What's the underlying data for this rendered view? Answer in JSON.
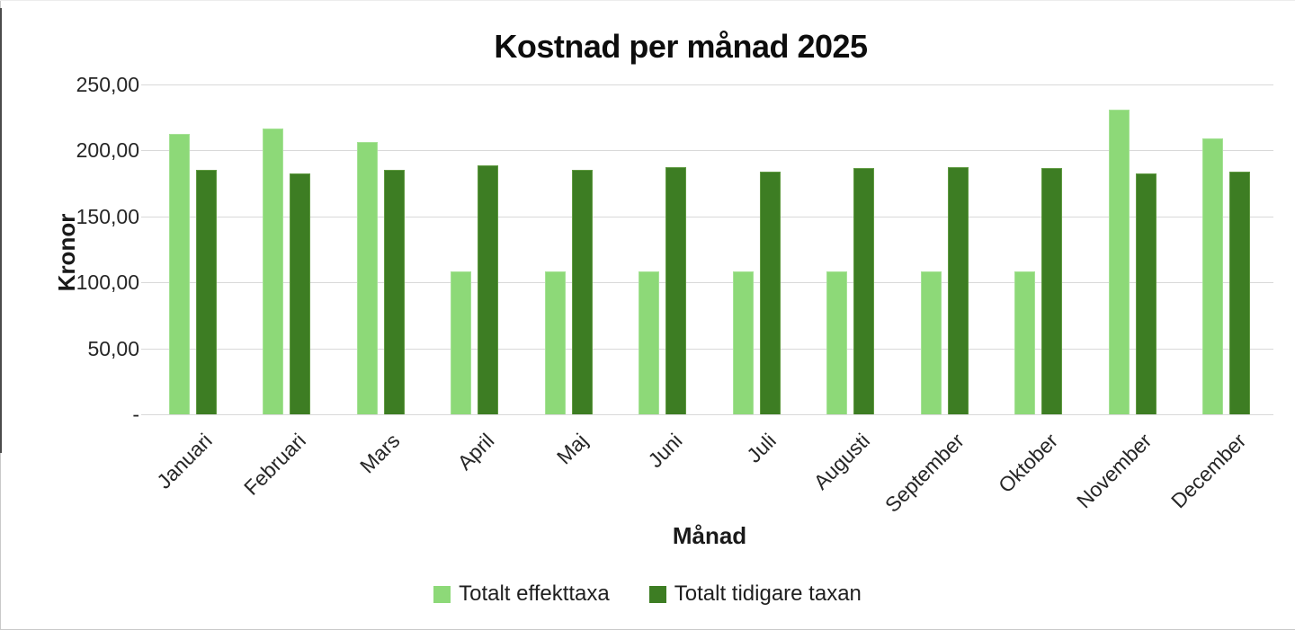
{
  "title": "Kostnad per månad 2025",
  "y_axis": {
    "label": "Kronor",
    "ticks": [
      {
        "value": 250,
        "label": "250,00"
      },
      {
        "value": 200,
        "label": "200,00"
      },
      {
        "value": 150,
        "label": "150,00"
      },
      {
        "value": 100,
        "label": "100,00"
      },
      {
        "value": 50,
        "label": "50,00"
      },
      {
        "value": 0,
        "label": "-"
      }
    ]
  },
  "x_axis": {
    "label": "Månad"
  },
  "legend": [
    {
      "name": "Totalt effekttaxa",
      "color": "#8dd978"
    },
    {
      "name": "Totalt tidigare taxan",
      "color": "#3d7d23"
    }
  ],
  "colors": {
    "gridline": "#d9d9d9",
    "axis_text": "#262626",
    "light_series": "#8dd978",
    "light_series_border": "#a6e296",
    "dark_series": "#3d7d23",
    "dark_series_border": "#609a42"
  },
  "chart_data": {
    "type": "bar",
    "title": "Kostnad per månad 2025",
    "xlabel": "Månad",
    "ylabel": "Kronor",
    "ylim": [
      0,
      250
    ],
    "y_tick_step": 50,
    "grid": true,
    "legend_position": "bottom",
    "categories": [
      "Januari",
      "Februari",
      "Mars",
      "April",
      "Maj",
      "Juni",
      "Juli",
      "Augusti",
      "September",
      "Oktober",
      "November",
      "December"
    ],
    "series": [
      {
        "name": "Totalt effekttaxa",
        "color": "#8dd978",
        "border_color": "#a6e296",
        "values": [
          212.5,
          216.5,
          206.5,
          108.3,
          108.3,
          108.3,
          108.3,
          108.3,
          108.3,
          108.3,
          231.0,
          209.0
        ]
      },
      {
        "name": "Totalt tidigare taxan",
        "color": "#3d7d23",
        "border_color": "#609a42",
        "values": [
          185.0,
          182.5,
          185.0,
          188.8,
          185.5,
          187.5,
          184.0,
          186.5,
          187.5,
          186.5,
          182.5,
          184.0
        ]
      }
    ]
  }
}
